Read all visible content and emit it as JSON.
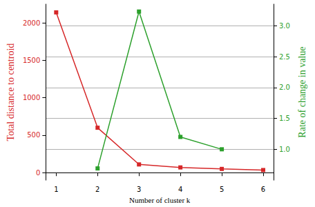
{
  "chart_data": {
    "type": "line",
    "x_label": "Number of cluster k",
    "y_label": "Total distance to centroid",
    "y2_label": "Rate of change in value",
    "x": [
      1,
      2,
      3,
      4,
      5,
      6
    ],
    "xlim": [
      0.75,
      6.25
    ],
    "xticks": [
      1,
      2,
      3,
      4,
      5,
      6
    ],
    "ylim": [
      -100,
      2250
    ],
    "yticks": [
      0,
      500,
      1000,
      1500,
      2000
    ],
    "y2lim": [
      0.5,
      3.35
    ],
    "y2ticks": [
      {
        "value": 1.0,
        "label": "1.0"
      },
      {
        "value": 1.5,
        "label": "1.5"
      },
      {
        "value": 2.0,
        "label": "2.0"
      },
      {
        "value": 2.5,
        "label": "2.5"
      },
      {
        "value": 3.0,
        "label": "3.0"
      }
    ],
    "grid": true,
    "series": [
      {
        "name": "Total distance to centroid",
        "color": "#d62728",
        "marker": "square",
        "line_style": "solid",
        "values": [
          2140,
          600,
          110,
          70,
          50,
          35
        ]
      },
      {
        "name": "Rate of change in value",
        "color": "#2ca02c",
        "marker": "square",
        "line_style": "solid",
        "axis": "y2",
        "values": [
          null,
          0.69,
          3.23,
          1.2,
          1.0,
          null
        ]
      }
    ]
  }
}
